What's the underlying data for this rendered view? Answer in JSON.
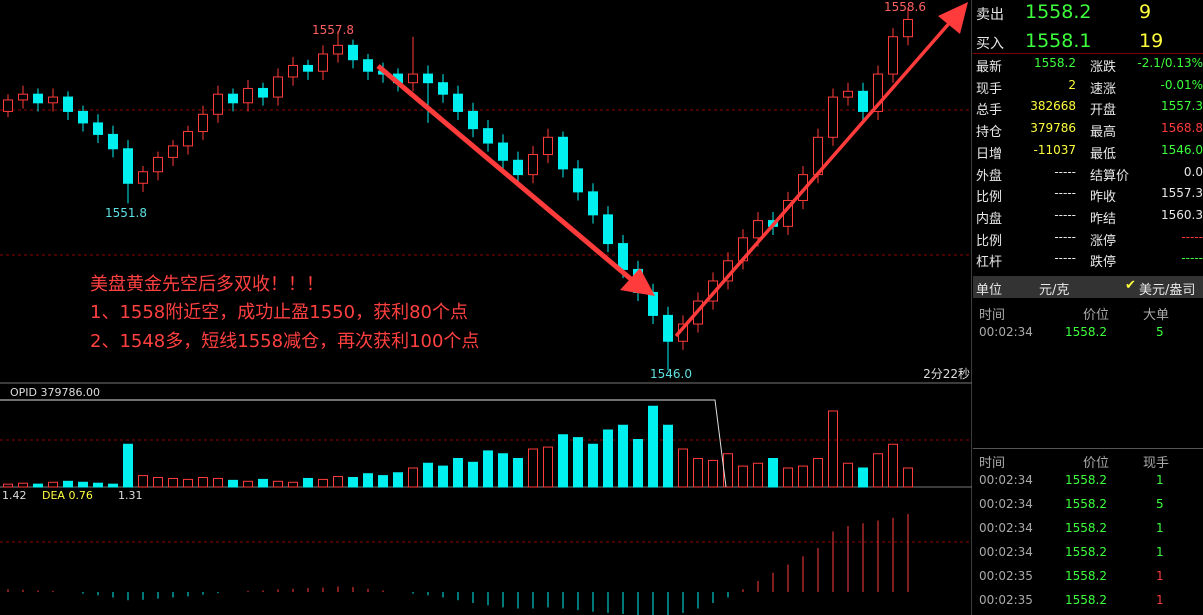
{
  "chart": {
    "ylim": [
      1546.0,
      1558.6
    ],
    "candles": [
      [
        1555.0,
        1555.6,
        1554.8,
        1555.4
      ],
      [
        1555.4,
        1555.9,
        1555.1,
        1555.6
      ],
      [
        1555.6,
        1555.8,
        1555.0,
        1555.3
      ],
      [
        1555.3,
        1555.8,
        1555.0,
        1555.5
      ],
      [
        1555.5,
        1555.7,
        1554.7,
        1555.0
      ],
      [
        1555.0,
        1555.2,
        1554.3,
        1554.6
      ],
      [
        1554.6,
        1554.9,
        1553.9,
        1554.2
      ],
      [
        1554.2,
        1554.5,
        1553.4,
        1553.7
      ],
      [
        1553.7,
        1554.0,
        1551.8,
        1552.5
      ],
      [
        1552.5,
        1553.1,
        1552.2,
        1552.9
      ],
      [
        1552.9,
        1553.6,
        1552.6,
        1553.4
      ],
      [
        1553.4,
        1554.0,
        1553.1,
        1553.8
      ],
      [
        1553.8,
        1554.5,
        1553.5,
        1554.3
      ],
      [
        1554.3,
        1555.2,
        1554.0,
        1554.9
      ],
      [
        1554.9,
        1555.9,
        1554.6,
        1555.6
      ],
      [
        1555.6,
        1555.8,
        1555.0,
        1555.3
      ],
      [
        1555.3,
        1556.1,
        1555.0,
        1555.8
      ],
      [
        1555.8,
        1556.0,
        1555.2,
        1555.5
      ],
      [
        1555.5,
        1556.5,
        1555.2,
        1556.2
      ],
      [
        1556.2,
        1556.9,
        1555.9,
        1556.6
      ],
      [
        1556.6,
        1556.8,
        1556.1,
        1556.4
      ],
      [
        1556.4,
        1557.3,
        1556.1,
        1557.0
      ],
      [
        1557.0,
        1557.8,
        1556.7,
        1557.3
      ],
      [
        1557.3,
        1557.5,
        1556.5,
        1556.8
      ],
      [
        1556.8,
        1557.0,
        1556.1,
        1556.4
      ],
      [
        1556.4,
        1556.7,
        1556.0,
        1556.3
      ],
      [
        1556.3,
        1556.5,
        1555.7,
        1556.0
      ],
      [
        1556.0,
        1557.6,
        1555.7,
        1556.3
      ],
      [
        1556.3,
        1556.6,
        1554.6,
        1556.0
      ],
      [
        1556.0,
        1556.3,
        1555.3,
        1555.6
      ],
      [
        1555.6,
        1555.9,
        1554.7,
        1555.0
      ],
      [
        1555.0,
        1555.3,
        1554.1,
        1554.4
      ],
      [
        1554.4,
        1554.7,
        1553.6,
        1553.9
      ],
      [
        1553.9,
        1554.2,
        1553.0,
        1553.3
      ],
      [
        1553.3,
        1553.6,
        1552.5,
        1552.8
      ],
      [
        1552.8,
        1553.8,
        1552.5,
        1553.5
      ],
      [
        1553.5,
        1554.4,
        1553.2,
        1554.1
      ],
      [
        1554.1,
        1554.3,
        1552.7,
        1553.0
      ],
      [
        1553.0,
        1553.3,
        1551.9,
        1552.2
      ],
      [
        1552.2,
        1552.5,
        1551.1,
        1551.4
      ],
      [
        1551.4,
        1551.7,
        1550.1,
        1550.4
      ],
      [
        1550.4,
        1550.7,
        1549.2,
        1549.5
      ],
      [
        1549.5,
        1549.8,
        1548.4,
        1548.7
      ],
      [
        1548.7,
        1549.0,
        1547.6,
        1547.9
      ],
      [
        1547.9,
        1548.2,
        1546.0,
        1547.0
      ],
      [
        1547.0,
        1547.9,
        1546.7,
        1547.6
      ],
      [
        1547.6,
        1548.7,
        1547.3,
        1548.4
      ],
      [
        1548.4,
        1549.4,
        1548.1,
        1549.1
      ],
      [
        1549.1,
        1550.1,
        1548.8,
        1549.8
      ],
      [
        1549.8,
        1550.9,
        1549.5,
        1550.6
      ],
      [
        1550.6,
        1551.5,
        1550.3,
        1551.2
      ],
      [
        1551.2,
        1551.5,
        1550.7,
        1551.0
      ],
      [
        1551.0,
        1552.2,
        1550.7,
        1551.9
      ],
      [
        1551.9,
        1553.1,
        1551.6,
        1552.8
      ],
      [
        1552.8,
        1554.4,
        1552.5,
        1554.1
      ],
      [
        1554.1,
        1555.8,
        1553.8,
        1555.5
      ],
      [
        1555.5,
        1556.0,
        1555.2,
        1555.7
      ],
      [
        1555.7,
        1556.0,
        1554.7,
        1555.0
      ],
      [
        1555.0,
        1556.6,
        1554.7,
        1556.3
      ],
      [
        1556.3,
        1557.9,
        1556.0,
        1557.6
      ],
      [
        1557.6,
        1558.6,
        1557.3,
        1558.2
      ]
    ],
    "high_label": "1557.8",
    "low_label": "1551.8",
    "day_low_label": "1546.0",
    "last_high_label": "1558.6",
    "timer": "2分22秒",
    "annotation": [
      "美盘黄金先空后多双收！！！",
      "1、1558附近空，成功止盈1550，获利80个点",
      "2、1548多，短线1558减仓，再次获利100个点"
    ],
    "opid_label": "OPID 379786.00",
    "volume": [
      3,
      4,
      3,
      5,
      6,
      5,
      4,
      3,
      45,
      12,
      10,
      9,
      8,
      10,
      9,
      7,
      6,
      8,
      6,
      5,
      9,
      8,
      11,
      10,
      14,
      12,
      15,
      20,
      25,
      22,
      30,
      26,
      38,
      35,
      30,
      40,
      42,
      55,
      52,
      45,
      60,
      65,
      50,
      85,
      65,
      40,
      30,
      28,
      35,
      22,
      25,
      30,
      20,
      22,
      30,
      80,
      25,
      20,
      35,
      45,
      20
    ],
    "macd_labels": [
      "1.42",
      "DEA 0.76",
      "1.31"
    ],
    "macd": [
      0.05,
      0.04,
      0.03,
      0.02,
      0,
      -0.03,
      -0.06,
      -0.1,
      -0.15,
      -0.14,
      -0.12,
      -0.1,
      -0.08,
      -0.05,
      -0.02,
      0,
      0.02,
      0.03,
      0.05,
      0.06,
      0.07,
      0.08,
      0.1,
      0.09,
      0.06,
      0.03,
      0,
      -0.03,
      -0.06,
      -0.1,
      -0.15,
      -0.2,
      -0.24,
      -0.28,
      -0.3,
      -0.3,
      -0.28,
      -0.3,
      -0.33,
      -0.36,
      -0.38,
      -0.4,
      -0.42,
      -0.44,
      -0.42,
      -0.38,
      -0.3,
      -0.2,
      -0.1,
      0.05,
      0.2,
      0.35,
      0.5,
      0.65,
      0.8,
      1.1,
      1.2,
      1.25,
      1.3,
      1.35,
      1.42
    ]
  },
  "quote": {
    "sell": {
      "label": "卖出",
      "price": "1558.2",
      "qty": "9"
    },
    "buy": {
      "label": "买入",
      "price": "1558.1",
      "qty": "19"
    },
    "rows": [
      [
        "最新",
        "1558.2",
        "涨跌",
        "-2.1/0.13%"
      ],
      [
        "现手",
        "2",
        "速涨",
        "-0.01%"
      ],
      [
        "总手",
        "382668",
        "开盘",
        "1557.3"
      ],
      [
        "持仓",
        "379786",
        "最高",
        "1568.8"
      ],
      [
        "日增",
        "-11037",
        "最低",
        "1546.0"
      ],
      [
        "外盘",
        "-----",
        "结算价",
        "0.0"
      ],
      [
        "比例",
        "-----",
        "昨收",
        "1557.3"
      ],
      [
        "内盘",
        "-----",
        "昨结",
        "1560.3"
      ],
      [
        "比例",
        "-----",
        "涨停",
        "-----"
      ],
      [
        "杠杆",
        "-----",
        "跌停",
        "-----"
      ]
    ],
    "unit": {
      "label": "单位",
      "value": "元/克",
      "option": "美元/盎司"
    },
    "big_trades": {
      "headers": [
        "时间",
        "价位",
        "大单"
      ],
      "rows": [
        [
          "00:02:34",
          "1558.2",
          "5"
        ]
      ]
    },
    "ticks": {
      "headers": [
        "时间",
        "价位",
        "现手"
      ],
      "rows": [
        [
          "00:02:34",
          "1558.2",
          "1"
        ],
        [
          "00:02:34",
          "1558.2",
          "5"
        ],
        [
          "00:02:34",
          "1558.2",
          "1"
        ],
        [
          "00:02:34",
          "1558.2",
          "1"
        ],
        [
          "00:02:35",
          "1558.2",
          "1"
        ],
        [
          "00:02:35",
          "1558.2",
          "1"
        ]
      ]
    }
  }
}
